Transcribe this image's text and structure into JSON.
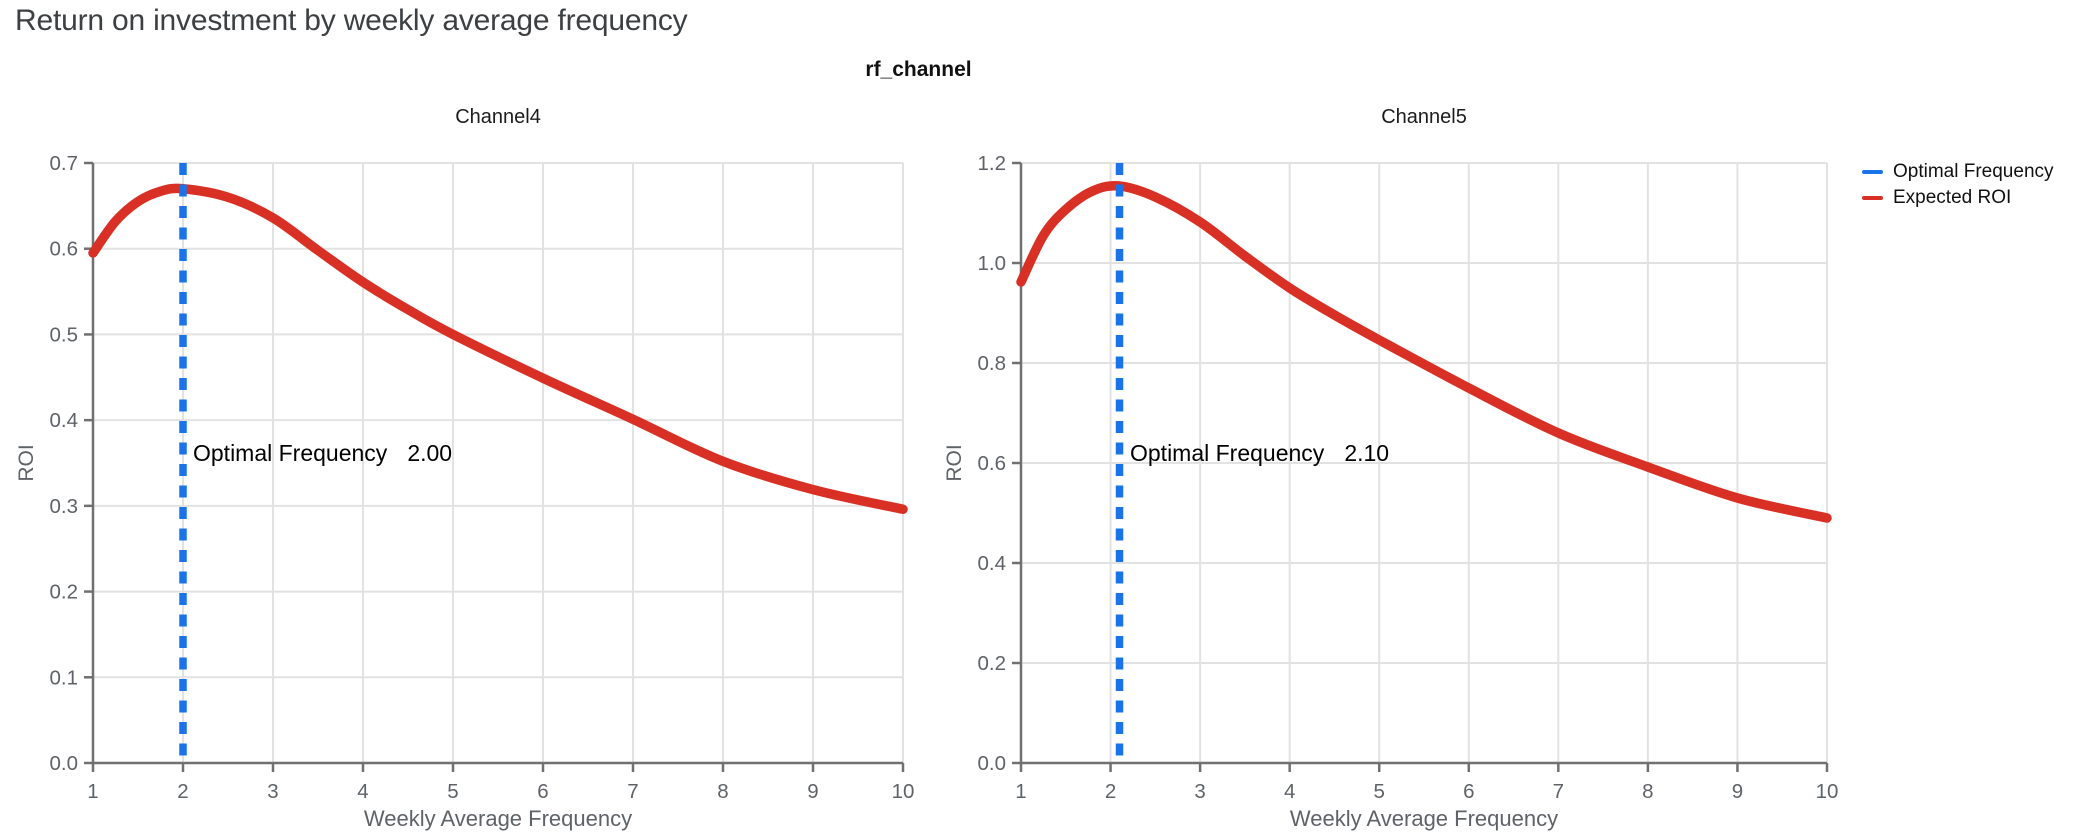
{
  "page": {
    "title": "Return on investment by weekly average frequency"
  },
  "facet_title": "rf_channel",
  "legend": {
    "position": "top-right",
    "items": [
      {
        "label": "Optimal Frequency",
        "color": "#1A73E8"
      },
      {
        "label": "Expected ROI",
        "color": "#D93025"
      }
    ]
  },
  "style": {
    "curve_color": "#D93025",
    "optimal_line_color": "#1A73E8",
    "grid_color": "#E2E2E2",
    "axis_color": "#707070",
    "tick_label_color": "#5F6368",
    "title_color": "#3C4043"
  },
  "chart_data": [
    {
      "type": "line",
      "title": "Channel4",
      "xlabel": "Weekly Average Frequency",
      "ylabel": "ROI",
      "xlim": [
        1,
        10
      ],
      "ylim": [
        0.0,
        0.7
      ],
      "xticks": [
        1,
        2,
        3,
        4,
        5,
        6,
        7,
        8,
        9,
        10
      ],
      "yticks": [
        0.0,
        0.1,
        0.2,
        0.3,
        0.4,
        0.5,
        0.6,
        0.7
      ],
      "grid": true,
      "optimal_frequency": 2.0,
      "annotation": {
        "label": "Optimal Frequency",
        "value": "2.00"
      },
      "series": [
        {
          "name": "Expected ROI",
          "x": [
            1,
            1.25,
            1.5,
            1.75,
            2,
            2.5,
            3,
            3.5,
            4,
            4.5,
            5,
            6,
            7,
            8,
            9,
            10
          ],
          "y": [
            0.595,
            0.632,
            0.655,
            0.667,
            0.67,
            0.66,
            0.636,
            0.598,
            0.561,
            0.529,
            0.5,
            0.449,
            0.401,
            0.352,
            0.319,
            0.296
          ]
        }
      ]
    },
    {
      "type": "line",
      "title": "Channel5",
      "xlabel": "Weekly Average Frequency",
      "ylabel": "ROI",
      "xlim": [
        1,
        10
      ],
      "ylim": [
        0.0,
        1.2
      ],
      "xticks": [
        1,
        2,
        3,
        4,
        5,
        6,
        7,
        8,
        9,
        10
      ],
      "yticks": [
        0.0,
        0.2,
        0.4,
        0.6,
        0.8,
        1.0,
        1.2
      ],
      "grid": true,
      "optimal_frequency": 2.1,
      "annotation": {
        "label": "Optimal Frequency",
        "value": "2.10"
      },
      "series": [
        {
          "name": "Expected ROI",
          "x": [
            1,
            1.25,
            1.5,
            1.8,
            2.1,
            2.5,
            3,
            3.5,
            4,
            4.5,
            5,
            6,
            7,
            8,
            9,
            10
          ],
          "y": [
            0.962,
            1.055,
            1.107,
            1.144,
            1.154,
            1.132,
            1.082,
            1.014,
            0.95,
            0.896,
            0.846,
            0.75,
            0.66,
            0.592,
            0.53,
            0.49
          ]
        }
      ]
    }
  ]
}
